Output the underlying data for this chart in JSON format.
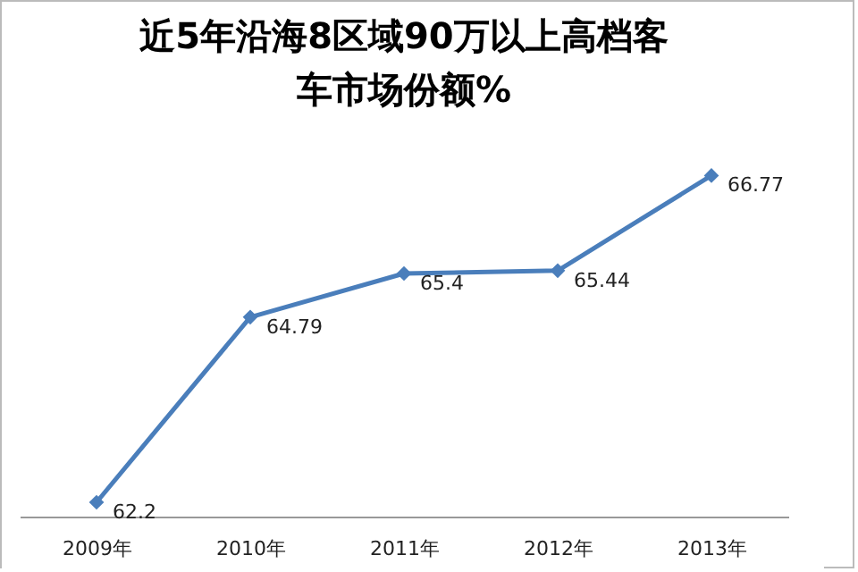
{
  "chart_data": {
    "type": "line",
    "title": "近5年沿海8区域90万以上高档客车市场份额%",
    "categories": [
      "2009年",
      "2010年",
      "2011年",
      "2012年",
      "2013年"
    ],
    "series": [
      {
        "color": "#4a7ebb",
        "values": [
          62.2,
          64.79,
          65.4,
          65.44,
          66.77
        ]
      }
    ],
    "data_labels": true,
    "marker": "diamond",
    "legend": false,
    "grid": false
  }
}
